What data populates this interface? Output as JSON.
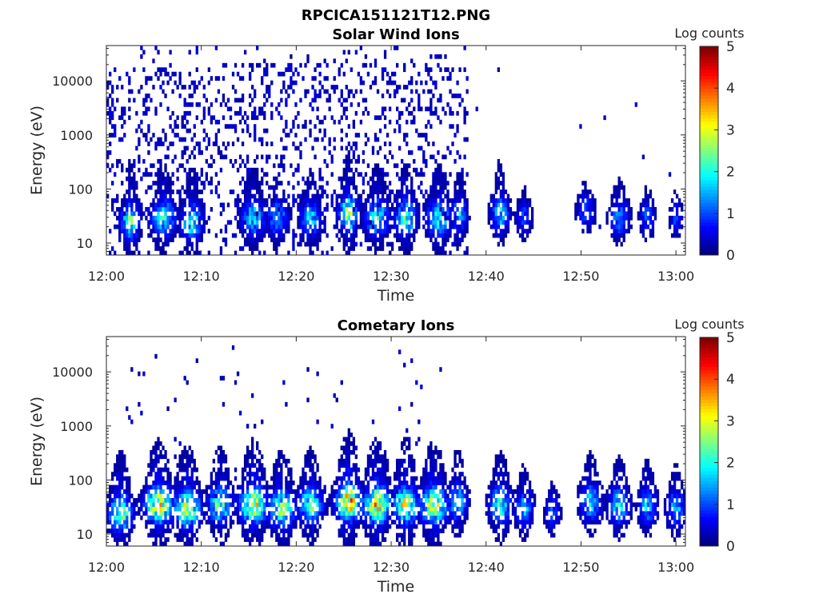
{
  "figure_title": "RPCICA151121T12.PNG",
  "colors": {
    "colormap": "jet",
    "axis": "#262626"
  },
  "chart_data": [
    {
      "type": "heatmap",
      "title": "Solar Wind Ions",
      "xlabel": "Time",
      "ylabel": "Energy (eV)",
      "y_scale": "log",
      "xlim_minutes": [
        0,
        61
      ],
      "ylim": [
        6,
        45000
      ],
      "x_ticks": [
        {
          "label": "12:00",
          "value": 0
        },
        {
          "label": "12:10",
          "value": 10
        },
        {
          "label": "12:20",
          "value": 20
        },
        {
          "label": "12:30",
          "value": 30
        },
        {
          "label": "12:40",
          "value": 40
        },
        {
          "label": "12:50",
          "value": 50
        },
        {
          "label": "13:00",
          "value": 60
        }
      ],
      "y_ticks": [
        {
          "label": "10",
          "value": 10
        },
        {
          "label": "100",
          "value": 100
        },
        {
          "label": "1000",
          "value": 1000
        },
        {
          "label": "10000",
          "value": 10000
        }
      ],
      "colorbar": {
        "label": "Log counts",
        "min": 0,
        "max": 5,
        "ticks": [
          "0",
          "1",
          "2",
          "3",
          "4",
          "5"
        ]
      },
      "grid": false,
      "seed": 17,
      "background_noise": {
        "t_end": 38,
        "t_sparse_end": 61,
        "dense_density": 0.22,
        "sparse_density": 0.004
      },
      "bursts": [
        {
          "t": 2.5,
          "e": 25,
          "peak": 2.3,
          "width": 0.6
        },
        {
          "t": 6.0,
          "e": 30,
          "peak": 2.0,
          "width": 0.8
        },
        {
          "t": 9.0,
          "e": 25,
          "peak": 2.1,
          "width": 0.7
        },
        {
          "t": 15.5,
          "e": 30,
          "peak": 1.8,
          "width": 0.8
        },
        {
          "t": 18.0,
          "e": 30,
          "peak": 1.6,
          "width": 0.7
        },
        {
          "t": 21.5,
          "e": 30,
          "peak": 1.7,
          "width": 0.7
        },
        {
          "t": 25.5,
          "e": 35,
          "peak": 2.7,
          "width": 0.6
        },
        {
          "t": 28.5,
          "e": 30,
          "peak": 2.0,
          "width": 0.8
        },
        {
          "t": 31.5,
          "e": 30,
          "peak": 2.2,
          "width": 0.7
        },
        {
          "t": 35.0,
          "e": 30,
          "peak": 2.0,
          "width": 0.8
        },
        {
          "t": 37.2,
          "e": 35,
          "peak": 1.6,
          "width": 0.5
        },
        {
          "t": 41.5,
          "e": 35,
          "peak": 1.8,
          "width": 0.6
        },
        {
          "t": 44.0,
          "e": 30,
          "peak": 1.0,
          "width": 0.5
        },
        {
          "t": 50.5,
          "e": 40,
          "peak": 1.0,
          "width": 0.6
        },
        {
          "t": 54.0,
          "e": 30,
          "peak": 1.3,
          "width": 0.7
        },
        {
          "t": 57.0,
          "e": 30,
          "peak": 1.0,
          "width": 0.5
        },
        {
          "t": 60.0,
          "e": 30,
          "peak": 0.9,
          "width": 0.4
        }
      ]
    },
    {
      "type": "heatmap",
      "title": "Cometary Ions",
      "xlabel": "Time",
      "ylabel": "Energy (eV)",
      "y_scale": "log",
      "xlim_minutes": [
        0,
        61
      ],
      "ylim": [
        6,
        45000
      ],
      "x_ticks": [
        {
          "label": "12:00",
          "value": 0
        },
        {
          "label": "12:10",
          "value": 10
        },
        {
          "label": "12:20",
          "value": 20
        },
        {
          "label": "12:30",
          "value": 30
        },
        {
          "label": "12:40",
          "value": 40
        },
        {
          "label": "12:50",
          "value": 50
        },
        {
          "label": "13:00",
          "value": 60
        }
      ],
      "y_ticks": [
        {
          "label": "10",
          "value": 10
        },
        {
          "label": "100",
          "value": 100
        },
        {
          "label": "1000",
          "value": 1000
        },
        {
          "label": "10000",
          "value": 10000
        }
      ],
      "colorbar": {
        "label": "Log counts",
        "min": 0,
        "max": 5,
        "ticks": [
          "0",
          "1",
          "2",
          "3",
          "4",
          "5"
        ]
      },
      "grid": false,
      "seed": 41,
      "background_noise": {
        "t_end": 38,
        "t_sparse_end": 38,
        "dense_density": 0.015,
        "sparse_density": 0.0
      },
      "bursts": [
        {
          "t": 1.5,
          "e": 25,
          "peak": 2.6,
          "width": 0.8
        },
        {
          "t": 5.5,
          "e": 35,
          "peak": 3.2,
          "width": 0.9
        },
        {
          "t": 8.5,
          "e": 30,
          "peak": 3.0,
          "width": 0.9
        },
        {
          "t": 12.0,
          "e": 35,
          "peak": 2.4,
          "width": 0.8
        },
        {
          "t": 15.5,
          "e": 35,
          "peak": 3.1,
          "width": 0.9
        },
        {
          "t": 18.5,
          "e": 30,
          "peak": 2.5,
          "width": 0.9
        },
        {
          "t": 21.5,
          "e": 35,
          "peak": 2.3,
          "width": 0.8
        },
        {
          "t": 25.5,
          "e": 40,
          "peak": 3.7,
          "width": 0.8
        },
        {
          "t": 28.5,
          "e": 35,
          "peak": 3.4,
          "width": 0.9
        },
        {
          "t": 31.5,
          "e": 35,
          "peak": 3.2,
          "width": 0.8
        },
        {
          "t": 34.5,
          "e": 35,
          "peak": 3.0,
          "width": 0.9
        },
        {
          "t": 37.0,
          "e": 40,
          "peak": 2.0,
          "width": 0.6
        },
        {
          "t": 41.5,
          "e": 35,
          "peak": 2.2,
          "width": 0.7
        },
        {
          "t": 44.0,
          "e": 30,
          "peak": 1.6,
          "width": 0.6
        },
        {
          "t": 47.0,
          "e": 25,
          "peak": 1.0,
          "width": 0.5
        },
        {
          "t": 51.0,
          "e": 40,
          "peak": 1.8,
          "width": 0.7
        },
        {
          "t": 54.0,
          "e": 35,
          "peak": 1.8,
          "width": 0.7
        },
        {
          "t": 57.0,
          "e": 35,
          "peak": 1.7,
          "width": 0.6
        },
        {
          "t": 60.0,
          "e": 30,
          "peak": 1.6,
          "width": 0.6
        }
      ]
    }
  ]
}
